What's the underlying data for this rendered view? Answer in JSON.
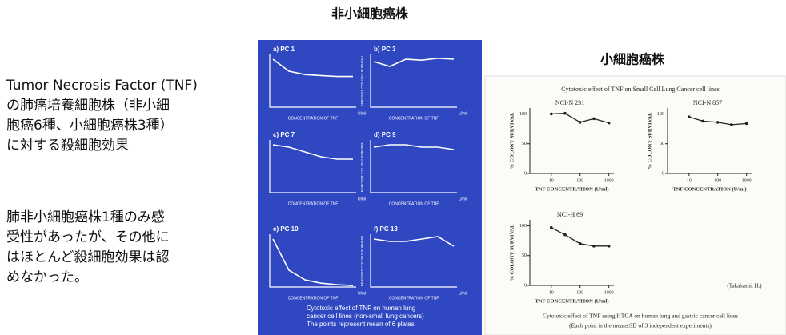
{
  "titles": {
    "non_small": "非小細胞癌株",
    "small": "小細胞癌株"
  },
  "left_text": {
    "box1": [
      "Tumor Necrosis Factor (TNF)",
      "の肺癌培養細胞株（非小細",
      "胞癌6種、小細胞癌株3種）",
      "に対する殺細胞効果"
    ],
    "box2": [
      "肺非小細胞癌株1種のみ感",
      "受性があったが、その他に",
      "はほとんど殺細胞効果は認",
      "めなかった。"
    ]
  },
  "nsclc_figure": {
    "xlabel": "CONCENTRATION OF TNF",
    "ylabel": "PERCENT COLONY SURVIVAL",
    "unit": "U/ml",
    "ylim": [
      0,
      110
    ],
    "panels": [
      {
        "label": "a) PC 1",
        "values": [
          100,
          75,
          68,
          66,
          64,
          64
        ]
      },
      {
        "label": "b) PC 3",
        "values": [
          95,
          85,
          100,
          98,
          102,
          100
        ]
      },
      {
        "label": "c) PC 7",
        "values": [
          100,
          95,
          85,
          75,
          70,
          70
        ]
      },
      {
        "label": "d) PC 9",
        "values": [
          95,
          100,
          100,
          95,
          95,
          90
        ]
      },
      {
        "label": "e) PC 10",
        "values": [
          100,
          35,
          15,
          8,
          5,
          3
        ]
      },
      {
        "label": "f) PC 13",
        "values": [
          100,
          95,
          95,
          100,
          105,
          85
        ]
      }
    ],
    "caption": [
      "Cytotoxic effect of TNF on human lung",
      "cancer cell lines (non-small lung cancers)",
      "The points represent mean of 6 plates"
    ]
  },
  "sclc_figure": {
    "title": "Cytotoxic effect of TNF on Small Cell Lung Cancer cell lines",
    "ylabel": "% COLONY SURVIVAL",
    "xlabel": "TNF CONCENTRATION (U/ml)",
    "x": [
      10,
      30,
      100,
      300,
      1000
    ],
    "xlim": [
      3,
      1500
    ],
    "xticks": [
      10,
      100,
      1000
    ],
    "ylim": [
      0,
      110
    ],
    "yticks": [
      0,
      50,
      100
    ],
    "panels": [
      {
        "label": "NCI-N 231",
        "values": [
          100,
          101,
          86,
          92,
          85
        ]
      },
      {
        "label": "NCI-N 857",
        "values": [
          95,
          88,
          86,
          82,
          84
        ]
      },
      {
        "label": "NCI-H 69",
        "values": [
          97,
          85,
          70,
          66,
          66
        ]
      }
    ],
    "credit": "(Takahashi, H.)",
    "caption": [
      "Cytotoxic effect of TNF using HTCA on human lung and gastric cancer cell lines",
      "(Each point is the mean±SD of 3 independent experiments)"
    ]
  }
}
